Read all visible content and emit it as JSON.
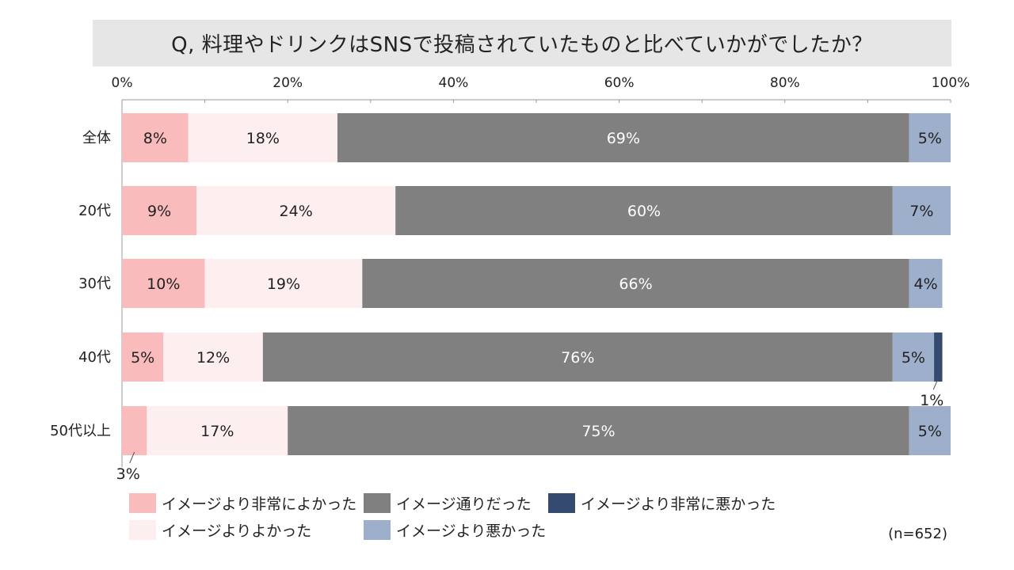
{
  "title": "Q, 料理やドリンクはSNSで投稿されていたものと比べていかがでしたか？",
  "sample_size": "(n=652)",
  "chart_data": {
    "type": "bar",
    "orientation": "horizontal",
    "stacked": true,
    "categories": [
      "全体",
      "20代",
      "30代",
      "40代",
      "50代以上"
    ],
    "xlim": [
      0,
      100
    ],
    "x_ticks": [
      0,
      20,
      40,
      60,
      80,
      100
    ],
    "x_tick_labels": [
      "0%",
      "20%",
      "40%",
      "60%",
      "80%",
      "100%"
    ],
    "x_axis_position": "top",
    "legend_position": "bottom",
    "series": [
      {
        "name": "イメージより非常によかった",
        "color": "#f9bbbb",
        "text_color": "#222222",
        "values": [
          8,
          9,
          10,
          5,
          3
        ],
        "labels": [
          "8%",
          "9%",
          "10%",
          "5%",
          "3%"
        ]
      },
      {
        "name": "イメージよりよかった",
        "color": "#fdefef",
        "text_color": "#222222",
        "values": [
          18,
          24,
          19,
          12,
          17
        ],
        "labels": [
          "18%",
          "24%",
          "19%",
          "12%",
          "17%"
        ]
      },
      {
        "name": "イメージ通りだった",
        "color": "#808080",
        "text_color": "#ffffff",
        "values": [
          69,
          60,
          66,
          76,
          75
        ],
        "labels": [
          "69%",
          "60%",
          "66%",
          "76%",
          "75%"
        ]
      },
      {
        "name": "イメージより悪かった",
        "color": "#9eafcc",
        "text_color": "#222222",
        "values": [
          5,
          7,
          4,
          5,
          5
        ],
        "labels": [
          "5%",
          "7%",
          "4%",
          "5%",
          "5%"
        ]
      },
      {
        "name": "イメージより非常に悪かった",
        "color": "#344a6e",
        "text_color": "#222222",
        "values": [
          0,
          0,
          0,
          1,
          0
        ],
        "labels": [
          "",
          "",
          "",
          "1%",
          ""
        ]
      }
    ],
    "legend_order": [
      [
        "イメージより非常によかった",
        "イメージ通りだった",
        "イメージより非常に悪かった"
      ],
      [
        "イメージよりよかった",
        "イメージより悪かった"
      ]
    ]
  }
}
